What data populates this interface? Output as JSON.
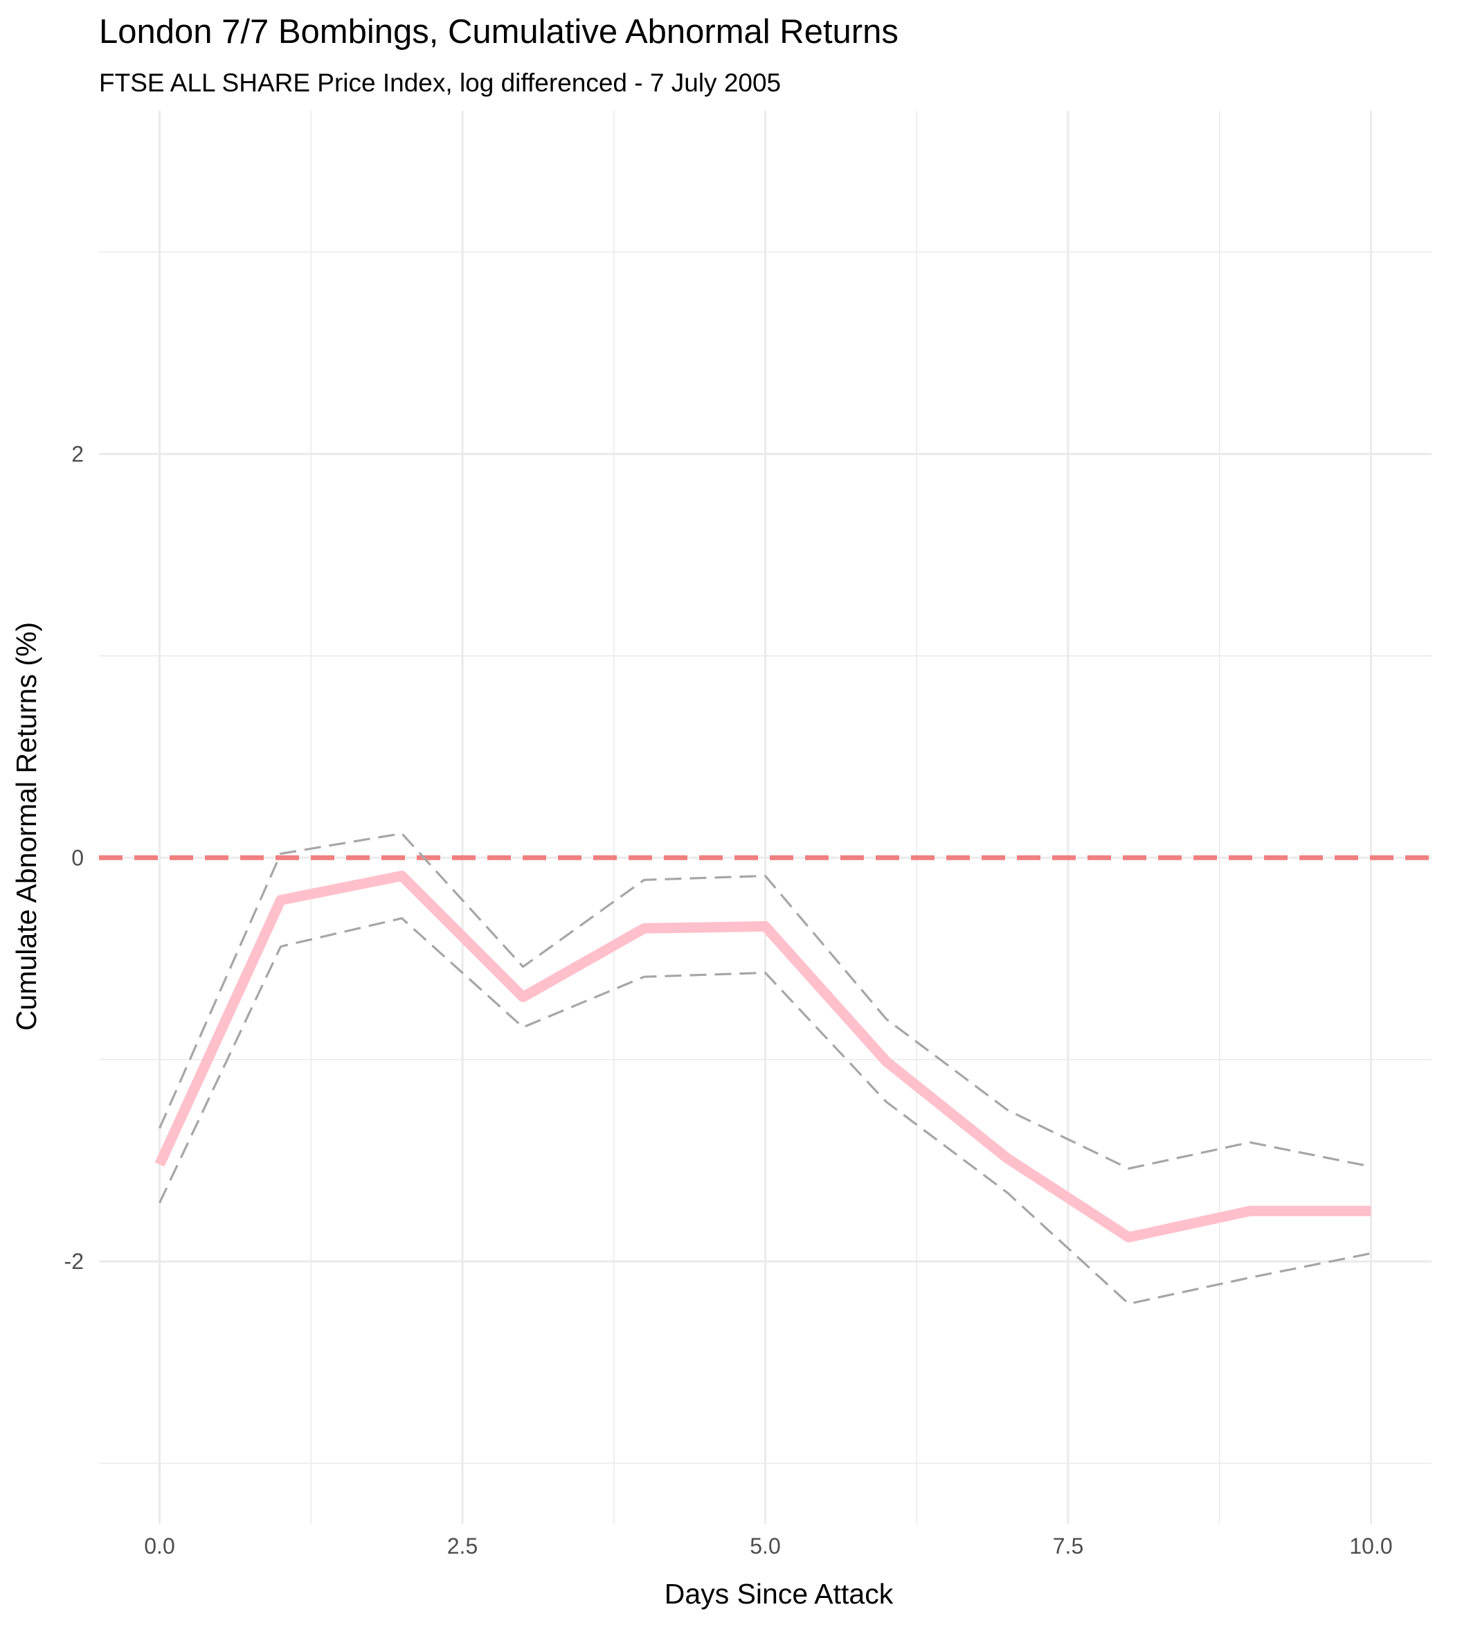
{
  "chart_data": {
    "type": "line",
    "title": "London 7/7 Bombings, Cumulative Abnormal Returns",
    "subtitle": "FTSE ALL SHARE Price Index, log differenced - 7 July 2005",
    "xlabel": "Days Since Attack",
    "ylabel": "Cumulate Abnormal Returns (%)",
    "xlim": [
      -0.5,
      10.5
    ],
    "ylim": [
      -3.3,
      3.7
    ],
    "x_ticks": [
      0.0,
      2.5,
      5.0,
      7.5,
      10.0
    ],
    "x_tick_labels": [
      "0.0",
      "2.5",
      "5.0",
      "7.5",
      "10.0"
    ],
    "y_ticks": [
      -2,
      0,
      2
    ],
    "y_tick_labels": [
      "-2",
      "0",
      "2"
    ],
    "x_minor_ticks": [
      1.25,
      3.75,
      6.25,
      8.75
    ],
    "y_minor_ticks": [
      -3,
      -1,
      1,
      3
    ],
    "grid": true,
    "reference_line": {
      "y": 0,
      "color": "#f08080",
      "style": "dashed"
    },
    "x": [
      0,
      1,
      2,
      3,
      4,
      5,
      6,
      7,
      8,
      9,
      10
    ],
    "series": [
      {
        "role": "cumulative-abnormal-return",
        "color": "#ffc0cb",
        "style": "solid",
        "values": [
          -1.52,
          -0.21,
          -0.09,
          -0.69,
          -0.35,
          -0.34,
          -1.01,
          -1.49,
          -1.88,
          -1.75,
          -1.75
        ]
      },
      {
        "role": "upper-bound",
        "color": "#a6a6a6",
        "style": "dashed",
        "values": [
          -1.34,
          0.02,
          0.12,
          -0.54,
          -0.11,
          -0.09,
          -0.8,
          -1.25,
          -1.54,
          -1.41,
          -1.53
        ]
      },
      {
        "role": "lower-bound",
        "color": "#a6a6a6",
        "style": "dashed",
        "values": [
          -1.71,
          -0.44,
          -0.3,
          -0.84,
          -0.59,
          -0.57,
          -1.21,
          -1.66,
          -2.21,
          -2.08,
          -1.96
        ]
      }
    ]
  }
}
